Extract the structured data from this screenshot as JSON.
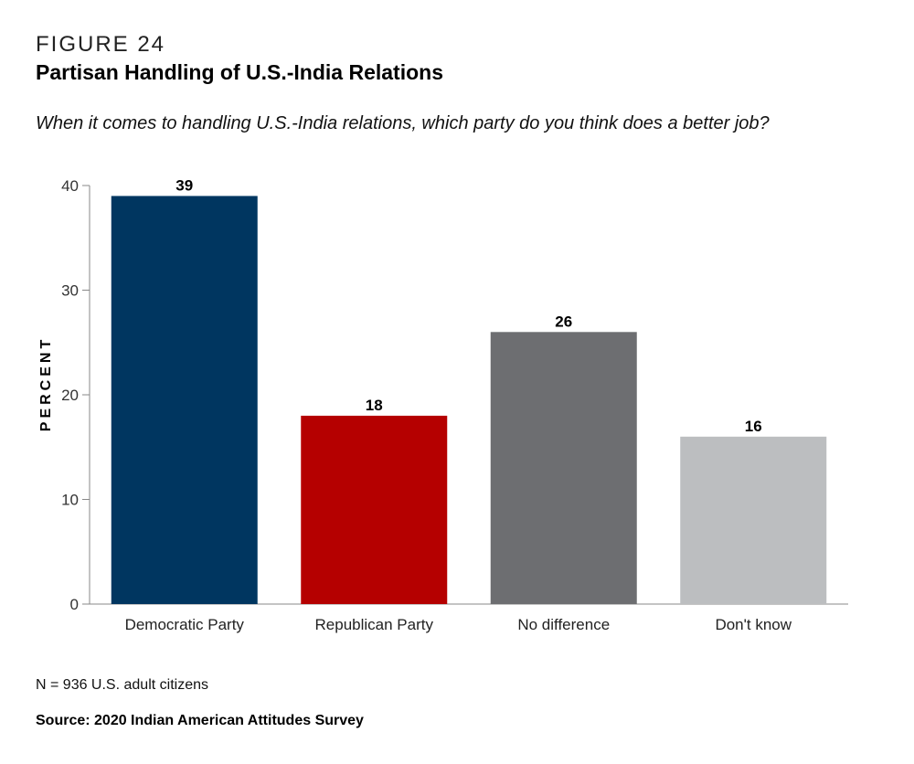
{
  "figure_label": "FIGURE 24",
  "title": "Partisan Handling of U.S.-India Relations",
  "question": "When it comes to handling U.S.-India relations, which party do you think does a better job?",
  "note": "N = 936 U.S. adult citizens",
  "source": "Source: 2020 Indian American Attitudes Survey",
  "chart_data": {
    "type": "bar",
    "title": "Partisan Handling of U.S.-India Relations",
    "xlabel": "",
    "ylabel": "PERCENT",
    "categories": [
      "Democratic Party",
      "Republican Party",
      "No difference",
      "Don't know"
    ],
    "values": [
      39,
      18,
      26,
      16
    ],
    "data_labels": [
      "39",
      "18",
      "26",
      "16"
    ],
    "colors": [
      "#003660",
      "#b50000",
      "#6d6e71",
      "#bcbec0"
    ],
    "ylim": [
      0,
      40
    ],
    "yticks": [
      0,
      10,
      20,
      30,
      40
    ],
    "grid": false,
    "legend": "none"
  }
}
